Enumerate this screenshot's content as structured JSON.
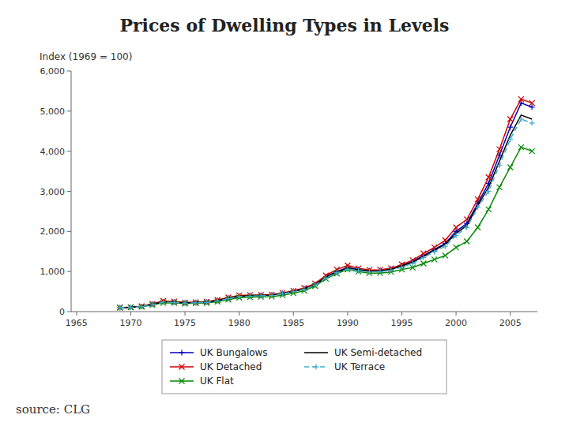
{
  "chart_data": {
    "type": "line",
    "title": "Prices of Dwelling Types in Levels",
    "y_label": "Index (1969 = 100)",
    "annotations": [
      "source: CLG"
    ],
    "x": [
      1969,
      1970,
      1971,
      1972,
      1973,
      1974,
      1975,
      1976,
      1977,
      1978,
      1979,
      1980,
      1981,
      1982,
      1983,
      1984,
      1985,
      1986,
      1987,
      1988,
      1989,
      1990,
      1991,
      1992,
      1993,
      1994,
      1995,
      1996,
      1997,
      1998,
      1999,
      2000,
      2001,
      2002,
      2003,
      2004,
      2005,
      2006,
      2007
    ],
    "series": [
      {
        "name": "UK Bungalows",
        "color": "#0000bb",
        "marker": "plus",
        "line_style": "solid",
        "values": [
          100,
          110,
          130,
          185,
          250,
          240,
          220,
          230,
          240,
          280,
          340,
          390,
          400,
          410,
          420,
          460,
          510,
          570,
          680,
          870,
          1000,
          1100,
          1050,
          1020,
          1030,
          1060,
          1150,
          1250,
          1400,
          1550,
          1700,
          2000,
          2200,
          2700,
          3200,
          3900,
          4600,
          5200,
          5100
        ]
      },
      {
        "name": "UK Detached",
        "color": "#cc0000",
        "marker": "x",
        "line_style": "solid",
        "values": [
          100,
          112,
          135,
          195,
          265,
          250,
          225,
          235,
          245,
          290,
          355,
          405,
          415,
          415,
          425,
          465,
          520,
          590,
          700,
          900,
          1050,
          1150,
          1080,
          1040,
          1045,
          1080,
          1175,
          1280,
          1450,
          1600,
          1780,
          2100,
          2300,
          2800,
          3350,
          4050,
          4800,
          5300,
          5200
        ]
      },
      {
        "name": "UK Flat",
        "color": "#008800",
        "marker": "x",
        "line_style": "solid",
        "values": [
          100,
          105,
          120,
          165,
          220,
          215,
          200,
          210,
          215,
          250,
          300,
          350,
          360,
          370,
          375,
          410,
          460,
          520,
          640,
          820,
          950,
          1050,
          1000,
          960,
          960,
          990,
          1050,
          1100,
          1200,
          1300,
          1400,
          1600,
          1750,
          2100,
          2550,
          3100,
          3600,
          4100,
          4000
        ]
      },
      {
        "name": "UK Semi-detached",
        "color": "#000000",
        "marker": "none",
        "line_style": "solid",
        "values": [
          100,
          108,
          128,
          180,
          245,
          235,
          215,
          225,
          235,
          275,
          335,
          385,
          395,
          405,
          415,
          455,
          505,
          565,
          675,
          860,
          990,
          1080,
          1040,
          1010,
          1020,
          1050,
          1140,
          1230,
          1380,
          1530,
          1680,
          1950,
          2150,
          2650,
          3100,
          3750,
          4400,
          4900,
          4800
        ]
      },
      {
        "name": "UK Terrace",
        "color": "#44aacc",
        "marker": "plus",
        "line_style": "dashed",
        "values": [
          100,
          107,
          125,
          175,
          238,
          228,
          210,
          218,
          228,
          268,
          325,
          375,
          385,
          395,
          405,
          445,
          495,
          555,
          660,
          840,
          970,
          1060,
          1020,
          990,
          1000,
          1030,
          1110,
          1200,
          1350,
          1490,
          1630,
          1900,
          2100,
          2600,
          3000,
          3650,
          4300,
          4800,
          4700
        ]
      }
    ],
    "xlim": [
      1964.5,
      2007.5
    ],
    "xticks": [
      1965,
      1970,
      1975,
      1980,
      1985,
      1990,
      1995,
      2000,
      2005
    ],
    "ylim": [
      0,
      6000
    ],
    "yticks": [
      0,
      {
        "value": 1000,
        "label": "1,000"
      },
      {
        "value": 2000,
        "label": "2,000"
      },
      {
        "value": 3000,
        "label": "3,000"
      },
      {
        "value": 4000,
        "label": "4,000"
      },
      {
        "value": 5000,
        "label": "5,000"
      },
      {
        "value": 6000,
        "label": "6,000"
      }
    ],
    "grid": false,
    "legend": "bottom"
  }
}
